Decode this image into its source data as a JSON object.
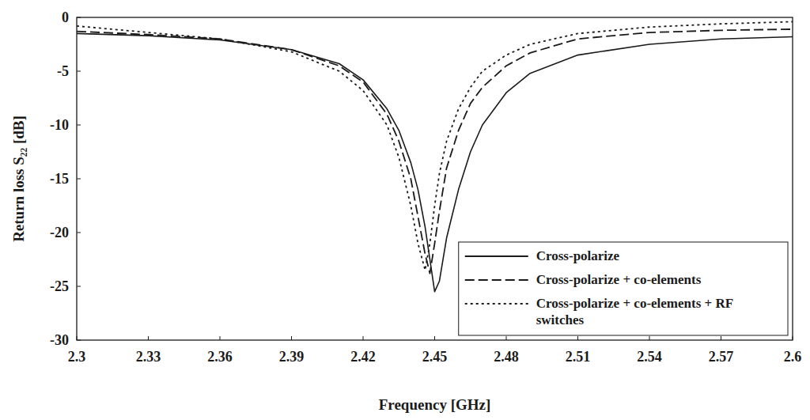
{
  "chart_data": {
    "type": "line",
    "x_label": "Frequency [GHz]",
    "y_label": "Return loss S₂₂ [dB]",
    "x": [
      2.3,
      2.33,
      2.36,
      2.39,
      2.41,
      2.42,
      2.43,
      2.435,
      2.44,
      2.443,
      2.446,
      2.448,
      2.45,
      2.452,
      2.455,
      2.46,
      2.465,
      2.47,
      2.48,
      2.49,
      2.51,
      2.54,
      2.57,
      2.6
    ],
    "series": [
      {
        "name": "Cross-polarize",
        "color": "#1a1a1a",
        "line_style": "solid",
        "values": [
          -1.5,
          -1.7,
          -2.1,
          -3,
          -4.3,
          -5.8,
          -8.5,
          -10.5,
          -13.5,
          -16,
          -19.5,
          -22.5,
          -25.5,
          -24.5,
          -20.5,
          -16,
          -12.5,
          -10,
          -7,
          -5.2,
          -3.5,
          -2.5,
          -2,
          -1.8
        ]
      },
      {
        "name": "Cross-polarize + co-elements",
        "color": "#1a1a1a",
        "line_style": "dashed",
        "values": [
          -1.3,
          -1.6,
          -2,
          -3,
          -4.5,
          -6,
          -9,
          -11.5,
          -15,
          -18.5,
          -22,
          -23.8,
          -21,
          -18,
          -14,
          -10.5,
          -8,
          -6.5,
          -4.5,
          -3.3,
          -2,
          -1.4,
          -1.2,
          -1.1
        ]
      },
      {
        "name": "Cross-polarize + co-elements + RF switches",
        "color": "#1a1a1a",
        "line_style": "dotted",
        "values": [
          -0.8,
          -1.4,
          -2,
          -3.2,
          -5,
          -6.8,
          -10,
          -13,
          -17.5,
          -21,
          -23.5,
          -21,
          -17.5,
          -14.5,
          -11.5,
          -8.5,
          -6.5,
          -5,
          -3.5,
          -2.5,
          -1.5,
          -0.9,
          -0.6,
          -0.4
        ]
      }
    ],
    "xlim": [
      2.3,
      2.6
    ],
    "ylim": [
      -30,
      0
    ],
    "xticks": [
      {
        "value": 2.3,
        "label": "2.3"
      },
      2.33,
      2.36,
      2.39,
      2.42,
      2.45,
      2.48,
      2.51,
      2.54,
      2.57,
      {
        "value": 2.6,
        "label": "2.6"
      }
    ],
    "yticks": [
      -30,
      -25,
      -20,
      -15,
      -10,
      -5,
      0
    ],
    "grid": false,
    "legend": "lower right"
  }
}
